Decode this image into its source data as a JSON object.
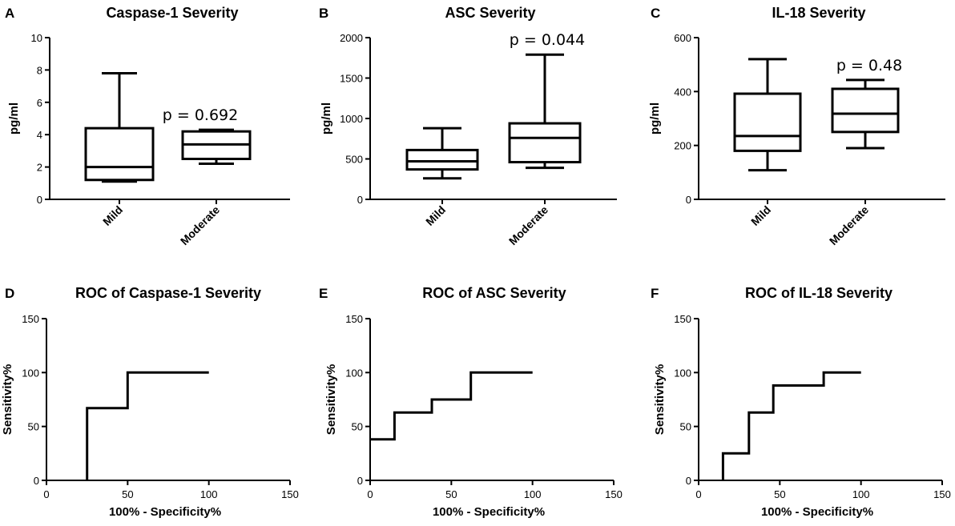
{
  "chart_data": [
    {
      "id": "A",
      "panel_label": "A",
      "type": "box",
      "title": "Caspase-1 Severity",
      "ylabel": "pg/ml",
      "ylim": [
        0,
        10
      ],
      "yticks": [
        0,
        2,
        4,
        6,
        8,
        10
      ],
      "categories": [
        "Mild",
        "Moderate"
      ],
      "boxes": [
        {
          "category": "Mild",
          "min": 1.1,
          "q1": 1.2,
          "median": 2.0,
          "q3": 4.4,
          "max": 7.8
        },
        {
          "category": "Moderate",
          "min": 2.2,
          "q1": 2.5,
          "median": 3.4,
          "q3": 4.2,
          "max": 4.3
        }
      ],
      "annotation": "p = 0.692"
    },
    {
      "id": "B",
      "panel_label": "B",
      "type": "box",
      "title": "ASC Severity",
      "ylabel": "pg/ml",
      "ylim": [
        0,
        2000
      ],
      "yticks": [
        0,
        500,
        1000,
        1500,
        2000
      ],
      "categories": [
        "Mild",
        "Moderate"
      ],
      "boxes": [
        {
          "category": "Mild",
          "min": 260,
          "q1": 370,
          "median": 470,
          "q3": 610,
          "max": 880
        },
        {
          "category": "Moderate",
          "min": 390,
          "q1": 460,
          "median": 760,
          "q3": 940,
          "max": 1790
        }
      ],
      "annotation": "p = 0.044"
    },
    {
      "id": "C",
      "panel_label": "C",
      "type": "box",
      "title": "IL-18 Severity",
      "ylabel": "pg/ml",
      "ylim": [
        0,
        600
      ],
      "yticks": [
        0,
        200,
        400,
        600
      ],
      "categories": [
        "Mild",
        "Moderate"
      ],
      "boxes": [
        {
          "category": "Mild",
          "min": 108,
          "q1": 180,
          "median": 235,
          "q3": 392,
          "max": 520
        },
        {
          "category": "Moderate",
          "min": 190,
          "q1": 250,
          "median": 318,
          "q3": 410,
          "max": 443
        }
      ],
      "annotation": "p = 0.48"
    },
    {
      "id": "D",
      "panel_label": "D",
      "type": "line",
      "title": "ROC of Caspase-1 Severity",
      "xlabel": "100% - Specificity%",
      "ylabel": "Sensitivity%",
      "xlim": [
        0,
        150
      ],
      "ylim": [
        0,
        150
      ],
      "xticks": [
        0,
        50,
        100,
        150
      ],
      "yticks": [
        0,
        50,
        100,
        150
      ],
      "series": [
        {
          "name": "ROC",
          "x": [
            25,
            25,
            50,
            50,
            100
          ],
          "y": [
            0,
            67,
            67,
            100,
            100
          ]
        }
      ]
    },
    {
      "id": "E",
      "panel_label": "E",
      "type": "line",
      "title": "ROC of ASC Severity",
      "xlabel": "100% - Specificity%",
      "ylabel": "Sensitivity%",
      "xlim": [
        0,
        150
      ],
      "ylim": [
        0,
        150
      ],
      "xticks": [
        0,
        50,
        100,
        150
      ],
      "yticks": [
        0,
        50,
        100,
        150
      ],
      "series": [
        {
          "name": "ROC",
          "x": [
            0,
            15,
            15,
            38,
            38,
            62,
            62,
            100
          ],
          "y": [
            38,
            38,
            63,
            63,
            75,
            75,
            100,
            100
          ]
        }
      ]
    },
    {
      "id": "F",
      "panel_label": "F",
      "type": "line",
      "title": "ROC of IL-18 Severity",
      "xlabel": "100% - Specificity%",
      "ylabel": "Sensitivity%",
      "xlim": [
        0,
        150
      ],
      "ylim": [
        0,
        150
      ],
      "xticks": [
        0,
        50,
        100,
        150
      ],
      "yticks": [
        0,
        50,
        100,
        150
      ],
      "series": [
        {
          "name": "ROC",
          "x": [
            15,
            15,
            31,
            31,
            46,
            46,
            77,
            77,
            100
          ],
          "y": [
            0,
            25,
            25,
            63,
            63,
            88,
            88,
            100,
            100
          ]
        }
      ]
    }
  ]
}
